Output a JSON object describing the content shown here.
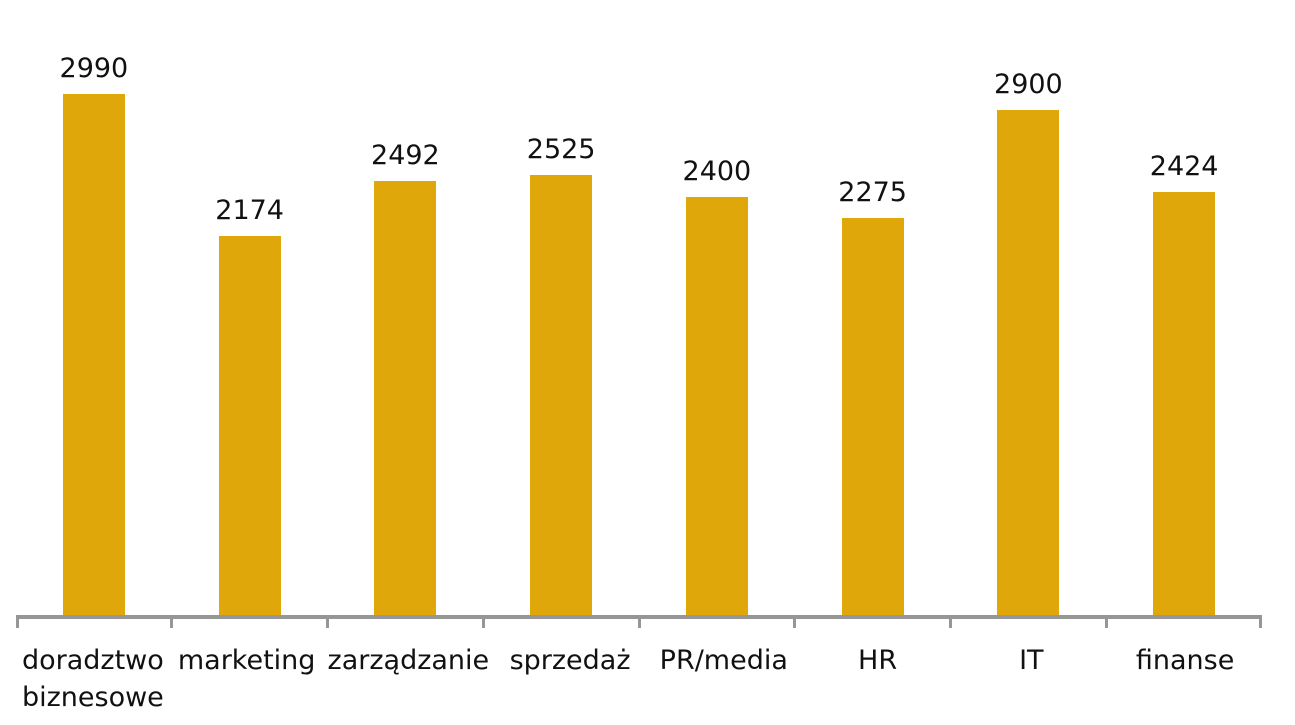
{
  "chart_data": {
    "type": "bar",
    "categories": [
      "doradztwo biznesowe",
      "marketing",
      "zarządzanie",
      "sprzedaż",
      "PR/media",
      "HR",
      "IT",
      "finanse"
    ],
    "values": [
      2990,
      2174,
      2492,
      2525,
      2400,
      2275,
      2900,
      2424
    ],
    "title": "",
    "xlabel": "",
    "ylabel": "",
    "ylim": [
      0,
      3500
    ],
    "grid": false,
    "legend": false,
    "data_labels": true,
    "colors": {
      "bar": "#DFA70A",
      "axis": "#969696",
      "text": "#111111",
      "background": "#FFFFFF"
    }
  }
}
